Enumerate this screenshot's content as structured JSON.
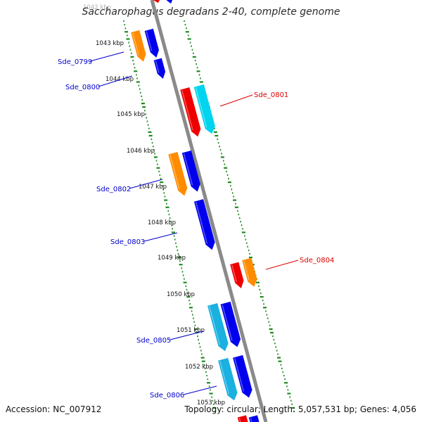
{
  "title": "Saccharophagus degradans 2-40, complete genome",
  "footer": {
    "accession": "Accession: NC_007912",
    "stats": "Topology: circular; Length: 5,057,531 bp; Genes: 4,056"
  },
  "colors": {
    "backbone": "#8a8a8a",
    "gc_track": "#1d8a1d",
    "label_forward": "#0000cc",
    "label_reverse": "#dd0000",
    "gene_blue": "#0000ee",
    "gene_orange": "#ff8c00",
    "gene_red": "#ee0000",
    "gene_cyan": "#00d4ee",
    "gene_lightblue": "#1ab0e0"
  },
  "scale_labels": [
    "1042 kbp",
    "1043 kbp",
    "1044 kbp",
    "1045 kbp",
    "1046 kbp",
    "1047 kbp",
    "1048 kbp",
    "1049 kbp",
    "1050 kbp",
    "1051 kbp",
    "1052 kbp",
    "1053 kbp"
  ],
  "gene_labels": [
    {
      "text": "Sde_0799",
      "strand": "forward"
    },
    {
      "text": "Sde_0800",
      "strand": "forward"
    },
    {
      "text": "Sde_0801",
      "strand": "reverse"
    },
    {
      "text": "Sde_0802",
      "strand": "forward"
    },
    {
      "text": "Sde_0803",
      "strand": "forward"
    },
    {
      "text": "Sde_0804",
      "strand": "reverse"
    },
    {
      "text": "Sde_0805",
      "strand": "forward"
    },
    {
      "text": "Sde_0806",
      "strand": "forward"
    }
  ]
}
